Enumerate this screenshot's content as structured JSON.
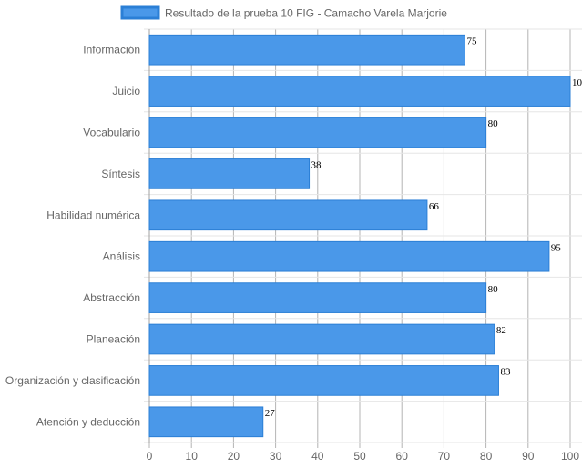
{
  "chart_data": {
    "type": "bar",
    "orientation": "horizontal",
    "categories": [
      "Información",
      "Juicio",
      "Vocabulario",
      "Síntesis",
      "Habilidad numérica",
      "Análisis",
      "Abstracción",
      "Planeación",
      "Organización y clasificación",
      "Atención y deducción"
    ],
    "series": [
      {
        "name": "Resultado de la prueba 10 FIG -  Camacho Varela Marjorie",
        "values": [
          75,
          100,
          80,
          38,
          66,
          95,
          80,
          82,
          83,
          27
        ],
        "color": "#4a98e9",
        "border_color": "#2b7fd6"
      }
    ],
    "xlim": [
      0,
      100
    ],
    "xticks": [
      0,
      10,
      20,
      30,
      40,
      50,
      60,
      70,
      80,
      90,
      100
    ],
    "grid": true,
    "legend_position": "top",
    "data_labels": true
  }
}
